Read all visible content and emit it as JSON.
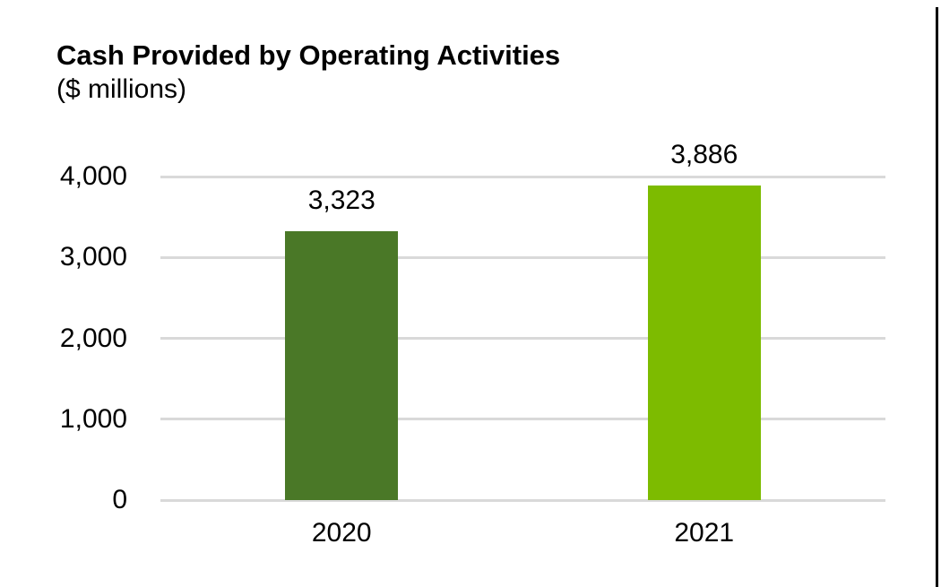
{
  "chart_data": {
    "type": "bar",
    "title": "Cash Provided by Operating Activities",
    "subtitle": "($ millions)",
    "categories": [
      "2020",
      "2021"
    ],
    "values": [
      3323,
      3886
    ],
    "value_labels": [
      "3,323",
      "3,886"
    ],
    "bar_colors": [
      "#4A7827",
      "#7DBB00"
    ],
    "xlabel": "",
    "ylabel": "",
    "ylim": [
      0,
      4000
    ],
    "yticks": [
      0,
      1000,
      2000,
      3000,
      4000
    ],
    "ytick_labels": [
      "0",
      "1,000",
      "2,000",
      "3,000",
      "4,000"
    ],
    "grid": true,
    "gridline_color": "#D9D9D9",
    "legend": "none"
  }
}
